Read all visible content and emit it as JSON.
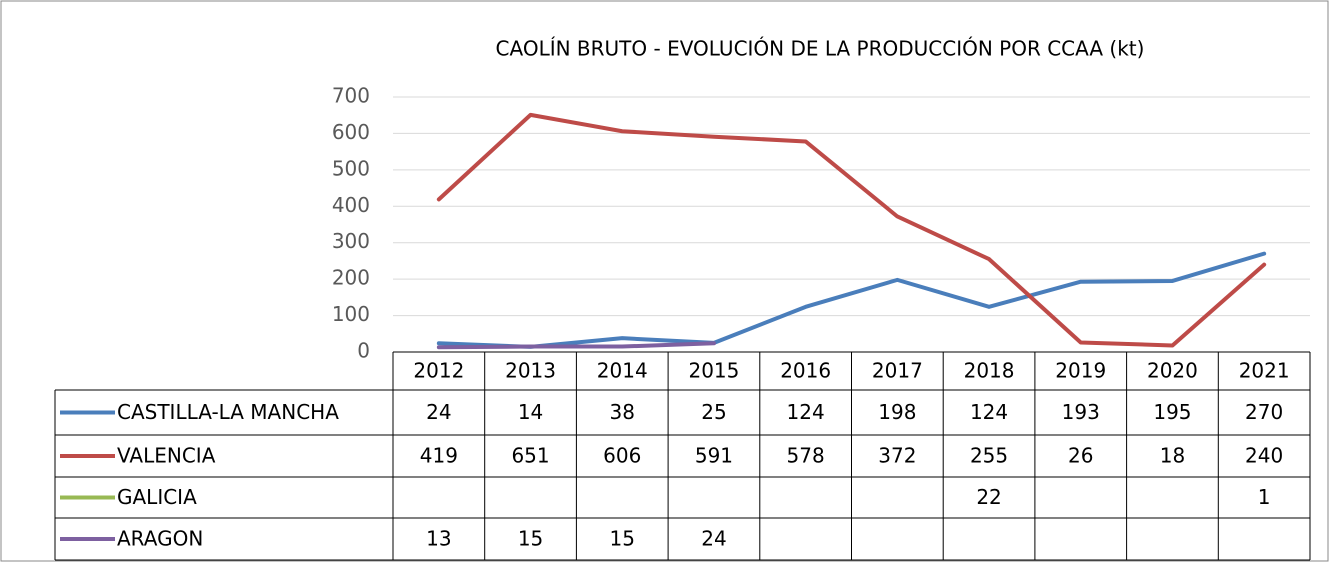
{
  "chart_data": {
    "type": "line",
    "title": "CAOLÍN BRUTO - EVOLUCIÓN DE LA PRODUCCIÓN POR CCAA (kt)",
    "categories": [
      "2012",
      "2013",
      "2014",
      "2015",
      "2016",
      "2017",
      "2018",
      "2019",
      "2020",
      "2021"
    ],
    "series": [
      {
        "name": "CASTILLA-LA MANCHA",
        "color": "#4a7ebb",
        "values": [
          24,
          14,
          38,
          25,
          124,
          198,
          124,
          193,
          195,
          270
        ]
      },
      {
        "name": "VALENCIA",
        "color": "#be4b48",
        "values": [
          419,
          651,
          606,
          591,
          578,
          372,
          255,
          26,
          18,
          240
        ]
      },
      {
        "name": "GALICIA",
        "color": "#98b954",
        "values": [
          null,
          null,
          null,
          null,
          null,
          null,
          22,
          null,
          null,
          1
        ]
      },
      {
        "name": "ARAGON",
        "color": "#7d60a0",
        "values": [
          13,
          15,
          15,
          24,
          null,
          null,
          null,
          null,
          null,
          null
        ]
      }
    ],
    "ylim": [
      0,
      700
    ],
    "yticks": [
      0,
      100,
      200,
      300,
      400,
      500,
      600,
      700
    ],
    "grid": true,
    "data_table": true
  }
}
